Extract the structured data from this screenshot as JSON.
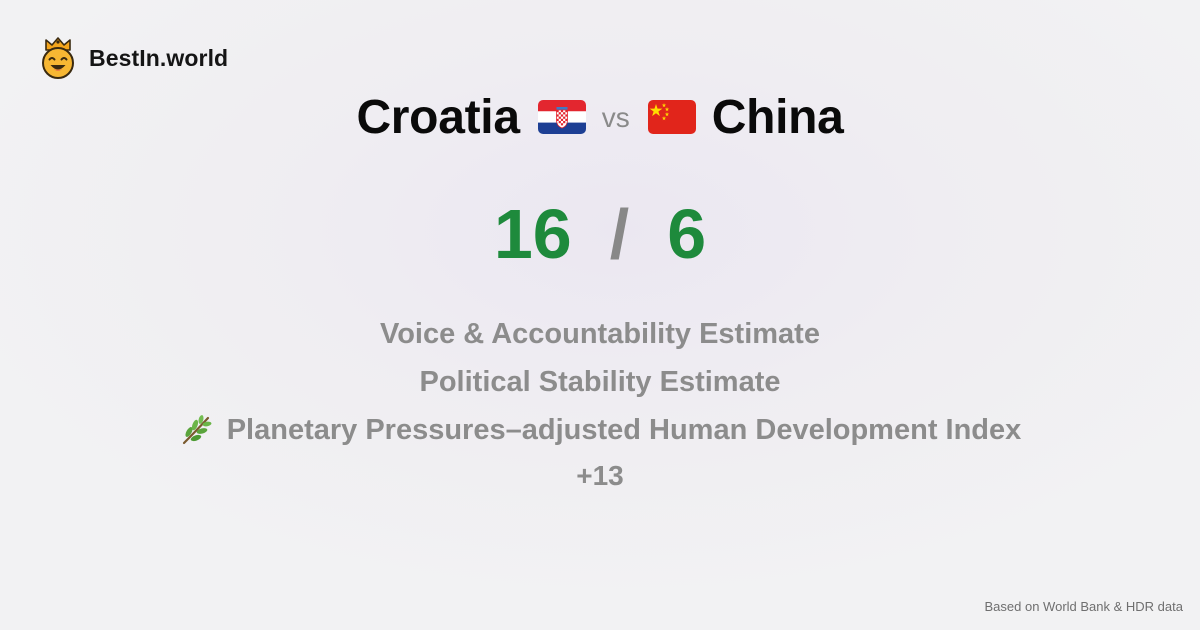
{
  "brand": {
    "name": "BestIn.world",
    "logo_icon": "crown-smiley-icon"
  },
  "matchup": {
    "left": {
      "name": "Croatia",
      "flag_icon": "croatia-flag-icon"
    },
    "vs_label": "vs",
    "right": {
      "name": "China",
      "flag_icon": "china-flag-icon"
    }
  },
  "score": {
    "left": "16",
    "separator": "/",
    "right": "6"
  },
  "metrics": [
    {
      "label": "Voice & Accountability Estimate",
      "icon": ""
    },
    {
      "label": "Political Stability Estimate",
      "icon": ""
    },
    {
      "label": "Planetary Pressures–adjusted Human Development Index",
      "icon": "herb-icon"
    }
  ],
  "more_count": "+13",
  "footer": {
    "source_note": "Based on World Bank & HDR data"
  },
  "colors": {
    "score_green": "#1e8a3c",
    "muted_text": "#8c8c8c",
    "dark_text": "#0a0a0a"
  }
}
